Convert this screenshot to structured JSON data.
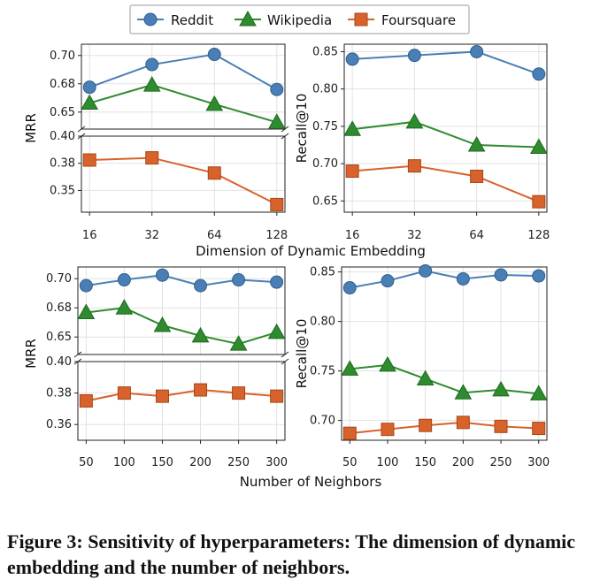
{
  "legend": {
    "entries": [
      "Reddit",
      "Wikipedia",
      "Foursquare"
    ]
  },
  "colors": {
    "Reddit": "#4a7fb5",
    "Wikipedia": "#2e8b2e",
    "Foursquare": "#d8622b"
  },
  "labels": {
    "top_xlabel": "Dimension of Dynamic Embedding",
    "bottom_xlabel": "Number of Neighbors"
  },
  "caption": "Figure 3: Sensitivity of hyperparameters: The dimension of dynamic embedding and the number of neighbors.",
  "chart_data": [
    {
      "type": "line",
      "panel": "top-left",
      "xlabel": "",
      "ylabel": "MRR",
      "x_ticks": [
        "16",
        "32",
        "64",
        "128"
      ],
      "broken_y": true,
      "y_upper": {
        "range": [
          0.635,
          0.71
        ],
        "ticks": [
          "0.70",
          "0.68",
          "0.65"
        ],
        "tick_values": [
          0.7,
          0.675,
          0.65
        ]
      },
      "y_lower": {
        "range": [
          0.33,
          0.4
        ],
        "ticks": [
          "0.40",
          "0.38",
          "0.35"
        ],
        "tick_values": [
          0.4,
          0.375,
          0.35
        ]
      },
      "series": [
        {
          "name": "Reddit",
          "axis": "upper",
          "values": [
            0.672,
            0.692,
            0.701,
            0.67
          ]
        },
        {
          "name": "Wikipedia",
          "axis": "upper",
          "values": [
            0.658,
            0.674,
            0.657,
            0.641
          ]
        },
        {
          "name": "Foursquare",
          "axis": "lower",
          "values": [
            0.378,
            0.38,
            0.366,
            0.337
          ]
        }
      ]
    },
    {
      "type": "line",
      "panel": "top-right",
      "xlabel": "",
      "ylabel": "Recall@10",
      "x_ticks": [
        "16",
        "32",
        "64",
        "128"
      ],
      "broken_y": false,
      "y": {
        "range": [
          0.635,
          0.86
        ],
        "ticks": [
          "0.85",
          "0.80",
          "0.75",
          "0.70",
          "0.65"
        ],
        "tick_values": [
          0.85,
          0.8,
          0.75,
          0.7,
          0.65
        ]
      },
      "series": [
        {
          "name": "Reddit",
          "values": [
            0.84,
            0.845,
            0.85,
            0.82
          ]
        },
        {
          "name": "Wikipedia",
          "values": [
            0.746,
            0.756,
            0.725,
            0.722
          ]
        },
        {
          "name": "Foursquare",
          "values": [
            0.69,
            0.697,
            0.683,
            0.649
          ]
        }
      ]
    },
    {
      "type": "line",
      "panel": "bottom-left",
      "xlabel": "",
      "ylabel": "MRR",
      "x_ticks": [
        "50",
        "100",
        "150",
        "200",
        "250",
        "300"
      ],
      "broken_y": true,
      "y_upper": {
        "range": [
          0.635,
          0.71
        ],
        "ticks": [
          "0.70",
          "0.68",
          "0.65"
        ],
        "tick_values": [
          0.7,
          0.675,
          0.65
        ]
      },
      "y_lower": {
        "range": [
          0.35,
          0.4
        ],
        "ticks": [
          "0.40",
          "0.38",
          "0.36"
        ],
        "tick_values": [
          0.4,
          0.38,
          0.36
        ]
      },
      "series": [
        {
          "name": "Reddit",
          "axis": "upper",
          "values": [
            0.694,
            0.699,
            0.703,
            0.694,
            0.699,
            0.697
          ]
        },
        {
          "name": "Wikipedia",
          "axis": "upper",
          "values": [
            0.671,
            0.675,
            0.66,
            0.651,
            0.644,
            0.654
          ]
        },
        {
          "name": "Foursquare",
          "axis": "lower",
          "values": [
            0.375,
            0.38,
            0.378,
            0.382,
            0.38,
            0.378
          ]
        }
      ]
    },
    {
      "type": "line",
      "panel": "bottom-right",
      "xlabel": "",
      "ylabel": "Recall@10",
      "x_ticks": [
        "50",
        "100",
        "150",
        "200",
        "250",
        "300"
      ],
      "broken_y": false,
      "y": {
        "range": [
          0.68,
          0.855
        ],
        "ticks": [
          "0.85",
          "0.80",
          "0.75",
          "0.70"
        ],
        "tick_values": [
          0.85,
          0.8,
          0.75,
          0.7
        ]
      },
      "series": [
        {
          "name": "Reddit",
          "values": [
            0.834,
            0.841,
            0.851,
            0.843,
            0.847,
            0.846
          ]
        },
        {
          "name": "Wikipedia",
          "values": [
            0.752,
            0.756,
            0.742,
            0.728,
            0.731,
            0.727
          ]
        },
        {
          "name": "Foursquare",
          "values": [
            0.687,
            0.691,
            0.695,
            0.698,
            0.694,
            0.692
          ]
        }
      ]
    }
  ]
}
